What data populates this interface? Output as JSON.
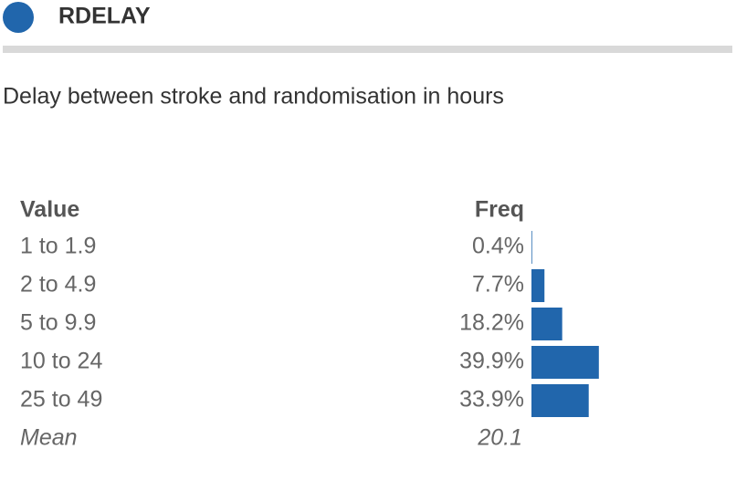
{
  "header": {
    "title": "RDELAY",
    "description": "Delay between stroke and randomisation in hours"
  },
  "table": {
    "columns": [
      "Value",
      "Freq"
    ],
    "rows": [
      {
        "value": "1 to 1.9",
        "freq": 0.4,
        "freq_label": "0.4%"
      },
      {
        "value": "2 to 4.9",
        "freq": 7.7,
        "freq_label": "7.7%"
      },
      {
        "value": "5 to 9.9",
        "freq": 18.2,
        "freq_label": "18.2%"
      },
      {
        "value": "10 to 24",
        "freq": 39.9,
        "freq_label": "39.9%"
      },
      {
        "value": "25 to 49",
        "freq": 33.9,
        "freq_label": "33.9%"
      }
    ],
    "summary": {
      "label": "Mean",
      "value": "20.1"
    },
    "bar_color": "#2166ac"
  }
}
